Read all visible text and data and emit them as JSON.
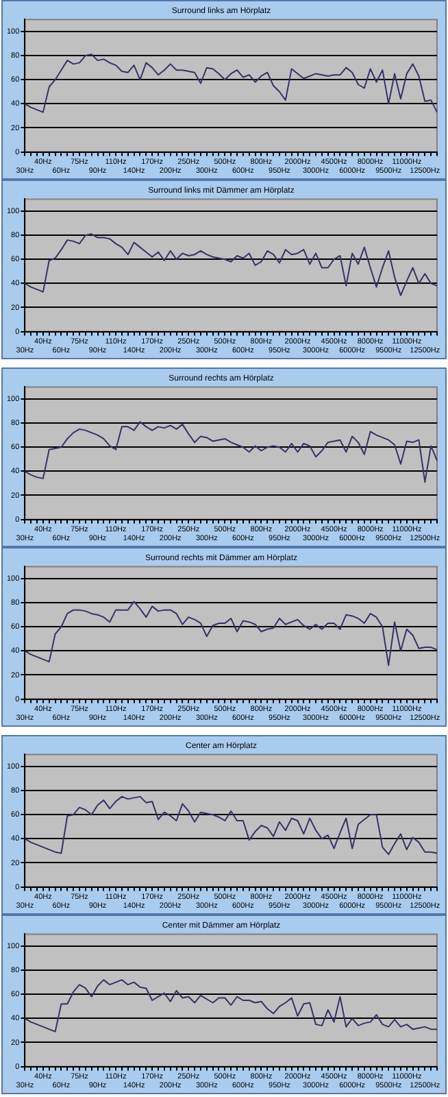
{
  "chart_data": [
    {
      "type": "line",
      "title": "Surround links am Hörplatz",
      "categories": [
        "30Hz",
        null,
        null,
        "40Hz",
        null,
        null,
        "60Hz",
        null,
        null,
        "75Hz",
        null,
        null,
        "90Hz",
        null,
        null,
        "110Hz",
        null,
        null,
        "140Hz",
        null,
        null,
        "170Hz",
        null,
        null,
        "200Hz",
        null,
        null,
        "250Hz",
        null,
        null,
        "300Hz",
        null,
        null,
        "500Hz",
        null,
        null,
        "600Hz",
        null,
        null,
        "800Hz",
        null,
        null,
        "950Hz",
        null,
        null,
        "2000Hz",
        null,
        null,
        "3000Hz",
        null,
        null,
        "4500Hz",
        null,
        null,
        "6000Hz",
        null,
        null,
        "8000Hz",
        null,
        null,
        "9500Hz",
        null,
        null,
        "11000Hz",
        null,
        null,
        "12500Hz",
        null,
        null
      ],
      "series": [
        {
          "color": "#333366",
          "values": [
            40,
            37,
            35,
            33,
            54,
            60,
            68,
            76,
            73,
            74,
            80,
            81,
            76,
            77,
            74,
            72,
            67,
            66,
            72,
            60,
            74,
            70,
            64,
            68,
            73,
            68,
            68,
            67,
            66,
            57,
            70,
            69,
            65,
            60,
            65,
            68,
            62,
            64,
            58,
            63,
            66,
            55,
            50,
            43,
            69,
            65,
            61,
            63,
            65,
            64,
            63,
            64,
            64,
            70,
            66,
            56,
            53,
            69,
            58,
            68,
            40,
            65,
            44,
            65,
            73,
            63,
            42,
            43,
            33
          ]
        }
      ],
      "ylim": [
        0,
        110
      ],
      "yticks": [
        0,
        20,
        40,
        60,
        80,
        100
      ],
      "grid": "y",
      "marker": "none"
    },
    {
      "type": "line",
      "title": "Surround links mit Dämmer am Hörplatz",
      "categories": [
        "30Hz",
        null,
        null,
        "40Hz",
        null,
        null,
        "60Hz",
        null,
        null,
        "75Hz",
        null,
        null,
        "90Hz",
        null,
        null,
        "110Hz",
        null,
        null,
        "140Hz",
        null,
        null,
        "170Hz",
        null,
        null,
        "200Hz",
        null,
        null,
        "250Hz",
        null,
        null,
        "300Hz",
        null,
        null,
        "500Hz",
        null,
        null,
        "600Hz",
        null,
        null,
        "800Hz",
        null,
        null,
        "950Hz",
        null,
        null,
        "2000Hz",
        null,
        null,
        "3000Hz",
        null,
        null,
        "4500Hz",
        null,
        null,
        "6000Hz",
        null,
        null,
        "8000Hz",
        null,
        null,
        "9500Hz",
        null,
        null,
        "11000Hz",
        null,
        null,
        "12500Hz",
        null,
        null
      ],
      "series": [
        {
          "color": "#333366",
          "values": [
            40,
            37,
            35,
            33,
            59,
            61,
            68,
            76,
            75,
            73,
            80,
            81,
            78,
            78,
            77,
            73,
            70,
            64,
            74,
            70,
            66,
            62,
            66,
            59,
            67,
            60,
            65,
            63,
            64,
            67,
            64,
            62,
            61,
            60,
            58,
            63,
            61,
            65,
            55,
            58,
            67,
            64,
            57,
            68,
            64,
            65,
            68,
            56,
            65,
            53,
            53,
            60,
            63,
            38,
            65,
            56,
            70,
            53,
            37,
            53,
            67,
            45,
            30,
            42,
            53,
            40,
            48,
            40,
            38
          ]
        }
      ],
      "ylim": [
        0,
        110
      ],
      "yticks": [
        0,
        20,
        40,
        60,
        80,
        100
      ],
      "grid": "y",
      "marker": "none"
    },
    {
      "type": "line",
      "title": "Surround rechts am Hörplatz",
      "categories": [
        "30Hz",
        null,
        null,
        "40Hz",
        null,
        null,
        "60Hz",
        null,
        null,
        "75Hz",
        null,
        null,
        "90Hz",
        null,
        null,
        "110Hz",
        null,
        null,
        "140Hz",
        null,
        null,
        "170Hz",
        null,
        null,
        "200Hz",
        null,
        null,
        "250Hz",
        null,
        null,
        "300Hz",
        null,
        null,
        "500Hz",
        null,
        null,
        "600Hz",
        null,
        null,
        "800Hz",
        null,
        null,
        "950Hz",
        null,
        null,
        "2000Hz",
        null,
        null,
        "3000Hz",
        null,
        null,
        "4500Hz",
        null,
        null,
        "6000Hz",
        null,
        null,
        "8000Hz",
        null,
        null,
        "9500Hz",
        null,
        null,
        "11000Hz",
        null,
        null,
        "12500Hz",
        null,
        null
      ],
      "series": [
        {
          "color": "#333366",
          "values": [
            40,
            37,
            35,
            34,
            58,
            59,
            60,
            67,
            72,
            75,
            74,
            72,
            70,
            67,
            61,
            58,
            77,
            77,
            74,
            81,
            77,
            74,
            77,
            76,
            78,
            75,
            79,
            71,
            64,
            69,
            68,
            65,
            66,
            67,
            64,
            62,
            60,
            56,
            61,
            57,
            60,
            61,
            60,
            56,
            63,
            56,
            63,
            61,
            52,
            57,
            64,
            65,
            66,
            56,
            69,
            64,
            54,
            73,
            70,
            68,
            66,
            62,
            46,
            65,
            64,
            66,
            31,
            61,
            49
          ]
        }
      ],
      "ylim": [
        0,
        110
      ],
      "yticks": [
        0,
        20,
        40,
        60,
        80,
        100
      ],
      "grid": "y",
      "marker": "none"
    },
    {
      "type": "line",
      "title": "Surround rechts mit Dämmer am Hörplatz",
      "categories": [
        "30Hz",
        null,
        null,
        "40Hz",
        null,
        null,
        "60Hz",
        null,
        null,
        "75Hz",
        null,
        null,
        "90Hz",
        null,
        null,
        "110Hz",
        null,
        null,
        "140Hz",
        null,
        null,
        "170Hz",
        null,
        null,
        "200Hz",
        null,
        null,
        "250Hz",
        null,
        null,
        "300Hz",
        null,
        null,
        "500Hz",
        null,
        null,
        "600Hz",
        null,
        null,
        "800Hz",
        null,
        null,
        "950Hz",
        null,
        null,
        "2000Hz",
        null,
        null,
        "3000Hz",
        null,
        null,
        "4500Hz",
        null,
        null,
        "6000Hz",
        null,
        null,
        "8000Hz",
        null,
        null,
        "9500Hz",
        null,
        null,
        "11000Hz",
        null,
        null,
        "12500Hz",
        null,
        null
      ],
      "series": [
        {
          "color": "#333366",
          "values": [
            40,
            37,
            35,
            33,
            31,
            54,
            60,
            71,
            74,
            74,
            73,
            71,
            70,
            68,
            64,
            74,
            74,
            74,
            81,
            75,
            68,
            77,
            73,
            74,
            74,
            71,
            62,
            68,
            66,
            63,
            52,
            61,
            63,
            63,
            67,
            56,
            65,
            64,
            62,
            56,
            58,
            59,
            67,
            62,
            64,
            66,
            61,
            58,
            62,
            58,
            63,
            63,
            58,
            70,
            69,
            67,
            63,
            71,
            68,
            60,
            28,
            64,
            40,
            58,
            53,
            42,
            43,
            43,
            41
          ]
        }
      ],
      "ylim": [
        0,
        110
      ],
      "yticks": [
        0,
        20,
        40,
        60,
        80,
        100
      ],
      "grid": "y",
      "marker": "none"
    },
    {
      "type": "line",
      "title": "Center am Hörplatz",
      "categories": [
        "30Hz",
        null,
        null,
        "40Hz",
        null,
        null,
        "60Hz",
        null,
        null,
        "75Hz",
        null,
        null,
        "90Hz",
        null,
        null,
        "110Hz",
        null,
        null,
        "140Hz",
        null,
        null,
        "170Hz",
        null,
        null,
        "200Hz",
        null,
        null,
        "250Hz",
        null,
        null,
        "300Hz",
        null,
        null,
        "500Hz",
        null,
        null,
        "600Hz",
        null,
        null,
        "800Hz",
        null,
        null,
        "950Hz",
        null,
        null,
        "2000Hz",
        null,
        null,
        "3000Hz",
        null,
        null,
        "4500Hz",
        null,
        null,
        "6000Hz",
        null,
        null,
        "8000Hz",
        null,
        null,
        "9500Hz",
        null,
        null,
        "11000Hz",
        null,
        null,
        "12500Hz",
        null,
        null
      ],
      "series": [
        {
          "color": "#333366",
          "values": [
            40,
            37,
            35,
            33,
            31,
            29,
            28,
            59,
            60,
            66,
            64,
            60,
            68,
            72,
            65,
            71,
            75,
            73,
            74,
            75,
            70,
            71,
            56,
            62,
            59,
            55,
            69,
            63,
            54,
            62,
            61,
            60,
            58,
            55,
            63,
            55,
            55,
            39,
            46,
            51,
            49,
            42,
            54,
            47,
            57,
            55,
            44,
            57,
            47,
            40,
            43,
            32,
            45,
            57,
            32,
            52,
            56,
            60,
            60,
            33,
            27,
            36,
            44,
            31,
            41,
            37,
            29,
            29,
            28
          ]
        }
      ],
      "ylim": [
        0,
        110
      ],
      "yticks": [
        0,
        20,
        40,
        60,
        80,
        100
      ],
      "grid": "y",
      "marker": "none"
    },
    {
      "type": "line",
      "title": "Center mit Dämmer am Hörplatz",
      "categories": [
        "30Hz",
        null,
        null,
        "40Hz",
        null,
        null,
        "60Hz",
        null,
        null,
        "75Hz",
        null,
        null,
        "90Hz",
        null,
        null,
        "110Hz",
        null,
        null,
        "140Hz",
        null,
        null,
        "170Hz",
        null,
        null,
        "200Hz",
        null,
        null,
        "250Hz",
        null,
        null,
        "300Hz",
        null,
        null,
        "500Hz",
        null,
        null,
        "600Hz",
        null,
        null,
        "800Hz",
        null,
        null,
        "950Hz",
        null,
        null,
        "2000Hz",
        null,
        null,
        "3000Hz",
        null,
        null,
        "4500Hz",
        null,
        null,
        "6000Hz",
        null,
        null,
        "8000Hz",
        null,
        null,
        "9500Hz",
        null,
        null,
        "11000Hz",
        null,
        null,
        "12500Hz",
        null,
        null
      ],
      "series": [
        {
          "color": "#333366",
          "values": [
            40,
            37,
            35,
            33,
            31,
            29,
            52,
            52,
            62,
            68,
            65,
            58,
            67,
            72,
            68,
            70,
            72,
            68,
            70,
            66,
            65,
            55,
            58,
            61,
            54,
            63,
            57,
            58,
            53,
            59,
            56,
            53,
            57,
            57,
            51,
            58,
            55,
            55,
            53,
            54,
            48,
            44,
            50,
            53,
            57,
            42,
            52,
            53,
            35,
            34,
            47,
            37,
            58,
            33,
            40,
            34,
            36,
            37,
            43,
            35,
            33,
            39,
            33,
            35,
            31,
            32,
            33,
            31,
            31
          ]
        }
      ],
      "ylim": [
        0,
        110
      ],
      "yticks": [
        0,
        20,
        40,
        60,
        80,
        100
      ],
      "grid": "y",
      "marker": "none"
    }
  ]
}
